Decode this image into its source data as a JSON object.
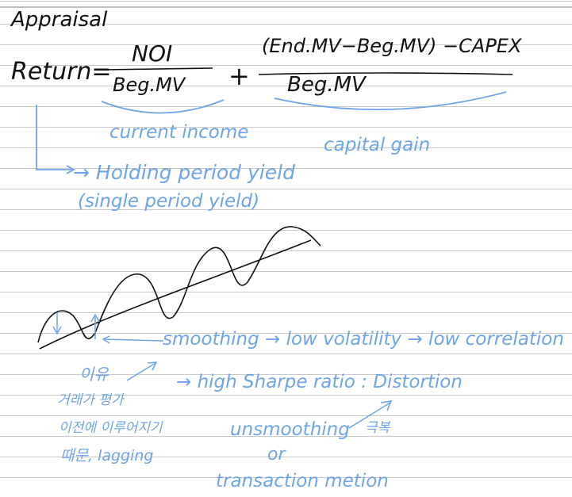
{
  "note": {
    "heading": "Appraisal",
    "formula": {
      "lhs": "Return=",
      "term1_numerator": "NOI",
      "term1_denominator": "Beg.MV",
      "plus": "+",
      "term2_numerator": "(End.MV−Beg.MV) −CAPEX",
      "term2_denominator": "Beg.MV"
    },
    "term1_caption": "current income",
    "term2_caption": "capital gain",
    "return_label_line1": "→ Holding period yield",
    "return_label_line2": "(single period yield)",
    "effects": {
      "smoothing": "smoothing → low volatility → low correlation",
      "sharpe": "→ high Sharpe ratio : Distortion"
    },
    "reason_korean": [
      "이유",
      "거래가 평가",
      "이전에 이루어지기",
      "때문, lagging"
    ],
    "remedy_korean": "극복",
    "remedy": {
      "line1": "unsmoothing",
      "line2": "or",
      "line3": "transaction metion"
    },
    "colors": {
      "pen_black": "#111111",
      "pen_blue": "#6fa4e6",
      "ruled_line": "#c9c9c9"
    }
  }
}
